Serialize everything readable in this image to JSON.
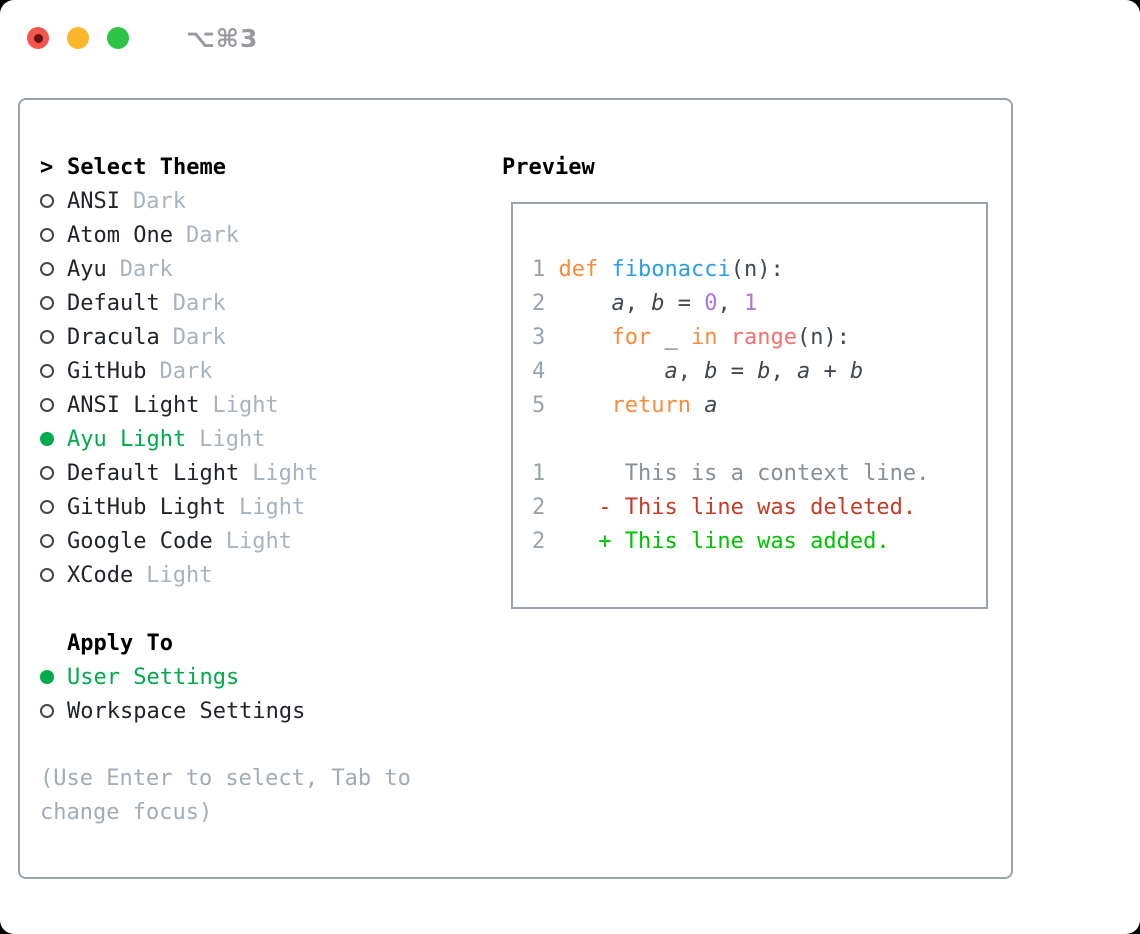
{
  "window": {
    "title": "⌥⌘3",
    "controls": {
      "close": "close",
      "minimize": "minimize",
      "zoom": "zoom"
    }
  },
  "theme_selector": {
    "header_prefix": ">",
    "header": "Select Theme",
    "themes": [
      {
        "name": "ANSI",
        "variant": "Dark",
        "selected": false
      },
      {
        "name": "Atom One",
        "variant": "Dark",
        "selected": false
      },
      {
        "name": "Ayu",
        "variant": "Dark",
        "selected": false
      },
      {
        "name": "Default",
        "variant": "Dark",
        "selected": false
      },
      {
        "name": "Dracula",
        "variant": "Dark",
        "selected": false
      },
      {
        "name": "GitHub",
        "variant": "Dark",
        "selected": false
      },
      {
        "name": "ANSI Light",
        "variant": "Light",
        "selected": false
      },
      {
        "name": "Ayu Light",
        "variant": "Light",
        "selected": true
      },
      {
        "name": "Default Light",
        "variant": "Light",
        "selected": false
      },
      {
        "name": "GitHub Light",
        "variant": "Light",
        "selected": false
      },
      {
        "name": "Google Code",
        "variant": "Light",
        "selected": false
      },
      {
        "name": "XCode",
        "variant": "Light",
        "selected": false
      }
    ],
    "apply_to": {
      "label": "Apply To",
      "options": [
        {
          "name": "User Settings",
          "selected": true
        },
        {
          "name": "Workspace Settings",
          "selected": false
        }
      ]
    },
    "hint": "(Use Enter to select, Tab to change focus)"
  },
  "preview": {
    "label": "Preview",
    "code_lines": [
      {
        "num": "1",
        "tokens": [
          [
            "def",
            "kw"
          ],
          [
            " ",
            ""
          ],
          [
            "fibonacci",
            "fn"
          ],
          [
            "(n):",
            ""
          ]
        ]
      },
      {
        "num": "2",
        "tokens": [
          [
            "    ",
            ""
          ],
          [
            "a",
            "var"
          ],
          [
            ", ",
            ""
          ],
          [
            "b",
            "var"
          ],
          [
            " = ",
            ""
          ],
          [
            "0",
            "num"
          ],
          [
            ", ",
            ""
          ],
          [
            "1",
            "num"
          ]
        ]
      },
      {
        "num": "3",
        "tokens": [
          [
            "    ",
            ""
          ],
          [
            "for",
            "kw"
          ],
          [
            " _ ",
            ""
          ],
          [
            "in",
            "kw"
          ],
          [
            " ",
            ""
          ],
          [
            "range",
            "bi"
          ],
          [
            "(n):",
            ""
          ]
        ]
      },
      {
        "num": "4",
        "tokens": [
          [
            "        ",
            ""
          ],
          [
            "a",
            "var"
          ],
          [
            ", ",
            ""
          ],
          [
            "b",
            "var"
          ],
          [
            " = ",
            ""
          ],
          [
            "b",
            "var"
          ],
          [
            ", ",
            ""
          ],
          [
            "a",
            "var"
          ],
          [
            " + ",
            ""
          ],
          [
            "b",
            "var"
          ]
        ]
      },
      {
        "num": "5",
        "tokens": [
          [
            "    ",
            ""
          ],
          [
            "return",
            "kw"
          ],
          [
            " ",
            ""
          ],
          [
            "a",
            "var"
          ]
        ]
      }
    ],
    "diff_lines": [
      {
        "num": "1",
        "sign": "",
        "text": "This is a context line.",
        "type": "context"
      },
      {
        "num": "2",
        "sign": "-",
        "text": "This line was deleted.",
        "type": "deleted"
      },
      {
        "num": "2",
        "sign": "+",
        "text": "This line was added.",
        "type": "added"
      }
    ]
  },
  "colors": {
    "selection_green": "#00ab4d",
    "added_green": "#00c300",
    "deleted_red": "#c63a28",
    "context_gray": "#888f97",
    "keyword_orange": "#f78c3a",
    "function_blue": "#2b9fe6",
    "builtin_coral": "#f0716f",
    "number_purple": "#a878d8",
    "panel_border": "#9aa2ac",
    "variant_tag_gray": "#a9b2be",
    "traffic_red": "#f2564e",
    "traffic_yellow": "#f9b72b",
    "traffic_green": "#2ec247"
  }
}
